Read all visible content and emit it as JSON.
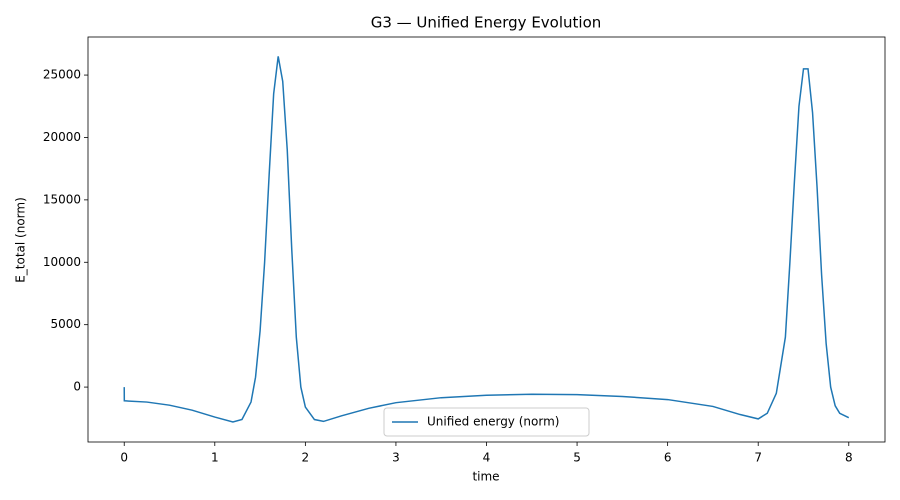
{
  "chart_data": {
    "type": "line",
    "title": "G3 — Unified Energy Evolution",
    "x_label": "time",
    "y_label": "E_total (norm)",
    "x": [
      0,
      0.001,
      0.25,
      0.5,
      0.75,
      1.0,
      1.2,
      1.3,
      1.4,
      1.45,
      1.5,
      1.55,
      1.6,
      1.65,
      1.7,
      1.75,
      1.8,
      1.85,
      1.9,
      1.95,
      2.0,
      2.1,
      2.2,
      2.4,
      2.7,
      3.0,
      3.5,
      4.0,
      4.5,
      5.0,
      5.5,
      6.0,
      6.5,
      6.8,
      7.0,
      7.1,
      7.2,
      7.3,
      7.35,
      7.4,
      7.45,
      7.5,
      7.55,
      7.6,
      7.65,
      7.7,
      7.75,
      7.8,
      7.85,
      7.9,
      8.0
    ],
    "series": [
      {
        "name": "Unified energy (norm)",
        "color": "#1f77b4",
        "values": [
          0,
          -1100,
          -1200,
          -1450,
          -1850,
          -2400,
          -2800,
          -2600,
          -1200,
          800,
          4500,
          10000,
          17000,
          23500,
          26500,
          24500,
          19000,
          11000,
          4000,
          0,
          -1600,
          -2600,
          -2750,
          -2300,
          -1700,
          -1250,
          -850,
          -650,
          -570,
          -600,
          -750,
          -1000,
          -1550,
          -2200,
          -2550,
          -2100,
          -500,
          4000,
          10000,
          16500,
          22500,
          25500,
          25500,
          22000,
          16000,
          9000,
          3500,
          0,
          -1500,
          -2100,
          -2450
        ]
      }
    ],
    "xlim": [
      -0.4,
      8.4
    ],
    "ylim": [
      -4400,
      28050
    ],
    "xticks": [
      0,
      1,
      2,
      3,
      4,
      5,
      6,
      7,
      8
    ],
    "yticks": [
      0,
      5000,
      10000,
      15000,
      20000,
      25000
    ],
    "legend": "lower center"
  }
}
